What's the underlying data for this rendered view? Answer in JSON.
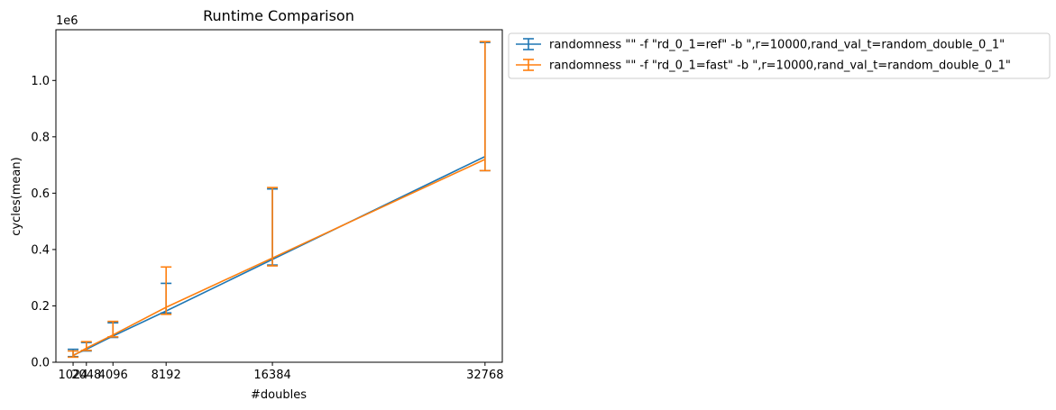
{
  "chart_data": {
    "type": "line",
    "title": "Runtime Comparison",
    "xlabel": "#doubles",
    "ylabel": "cycles(mean)",
    "y_offset_label": "1e6",
    "x_ticks": [
      1024,
      2048,
      4096,
      8192,
      16384,
      32768
    ],
    "x_tick_labels": [
      "1024",
      "2048",
      "4096",
      "8192",
      "16384",
      "32768"
    ],
    "y_ticks": [
      0,
      0.2,
      0.4,
      0.6,
      0.8,
      1.0
    ],
    "y_tick_labels": [
      "0.0",
      "0.2",
      "0.4",
      "0.6",
      "0.8",
      "1.0"
    ],
    "xlim": [
      -300,
      34100
    ],
    "ylim": [
      0,
      1.18
    ],
    "grid": false,
    "legend_position": "outside-upper-right",
    "x": [
      1024,
      2048,
      4096,
      8192,
      16384,
      32768
    ],
    "series": [
      {
        "name": "randomness \"\" -f \"rd_0_1=ref\" -b \",r=10000,rand_val_t=random_double_0_1\"",
        "color": "#1f77b4",
        "values": [
          0.025,
          0.046,
          0.093,
          0.182,
          0.365,
          0.73
        ],
        "err_low": [
          0.02,
          0.04,
          0.088,
          0.175,
          0.345,
          0.68
        ],
        "err_high": [
          0.046,
          0.07,
          0.14,
          0.28,
          0.615,
          1.135
        ]
      },
      {
        "name": "randomness \"\" -f \"rd_0_1=fast\" -b \",r=10000,rand_val_t=random_double_0_1\"",
        "color": "#ff7f0e",
        "values": [
          0.023,
          0.05,
          0.097,
          0.195,
          0.37,
          0.72
        ],
        "err_low": [
          0.018,
          0.042,
          0.09,
          0.17,
          0.342,
          0.68
        ],
        "err_high": [
          0.04,
          0.073,
          0.145,
          0.338,
          0.62,
          1.138
        ]
      }
    ]
  }
}
